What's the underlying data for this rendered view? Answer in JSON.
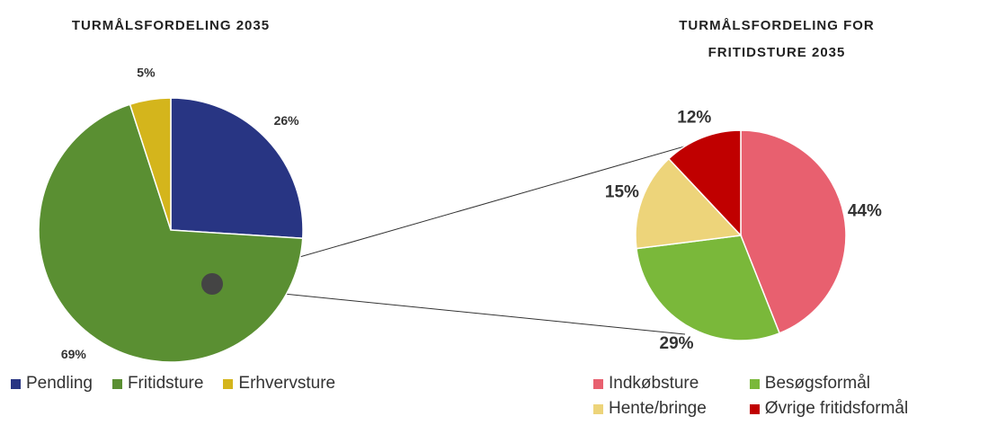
{
  "chart_data": [
    {
      "type": "pie",
      "title": "TURMÅLSFORDELING 2035",
      "categories": [
        "Pendling",
        "Fritidsture",
        "Erhvervsture"
      ],
      "values": [
        26,
        69,
        5
      ],
      "value_labels": [
        "26%",
        "69%",
        "5%"
      ],
      "colors": [
        "#283583",
        "#5a8f32",
        "#d4b51c"
      ]
    },
    {
      "type": "pie",
      "title": "TURMÅLSFORDELING FOR FRITIDSTURE 2035",
      "categories": [
        "Indkøbsture",
        "Besøgsformål",
        "Hente/bringe",
        "Øvrige fritidsformål"
      ],
      "values": [
        44,
        29,
        15,
        12
      ],
      "value_labels": [
        "44%",
        "29%",
        "15%",
        "12%"
      ],
      "colors": [
        "#e8606f",
        "#7ab83a",
        "#edd47a",
        "#c00000"
      ]
    }
  ]
}
